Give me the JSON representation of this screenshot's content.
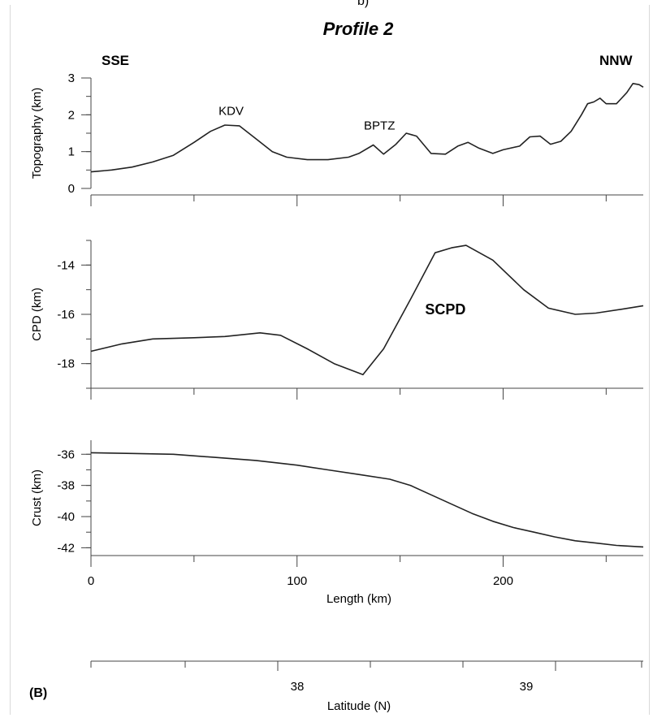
{
  "figure": {
    "title": "Profile 2",
    "panel_label": "(B)",
    "header_fragment": "b)",
    "direction_left": "SSE",
    "direction_right": "NNW"
  },
  "chart_data": [
    {
      "type": "line",
      "name": "topography",
      "ylabel": "Topography (km)",
      "xlim": [
        0,
        268
      ],
      "ylim": [
        0,
        3
      ],
      "yticks": [
        0,
        1,
        2,
        3
      ],
      "annotations": [
        {
          "text": "KDV",
          "x": 68,
          "y": 2.0
        },
        {
          "text": "BPTZ",
          "x": 140,
          "y": 1.6
        }
      ],
      "x": [
        0,
        10,
        20,
        30,
        40,
        50,
        58,
        65,
        72,
        80,
        88,
        95,
        105,
        115,
        125,
        130,
        137,
        142,
        148,
        153,
        158,
        165,
        172,
        178,
        183,
        188,
        195,
        200,
        208,
        213,
        218,
        223,
        228,
        233,
        238,
        241,
        244,
        247,
        250,
        255,
        260,
        263,
        266,
        268
      ],
      "y": [
        0.45,
        0.5,
        0.58,
        0.72,
        0.9,
        1.25,
        1.55,
        1.72,
        1.7,
        1.35,
        1.0,
        0.85,
        0.78,
        0.78,
        0.85,
        0.95,
        1.18,
        0.93,
        1.2,
        1.5,
        1.42,
        0.95,
        0.93,
        1.15,
        1.25,
        1.1,
        0.95,
        1.05,
        1.15,
        1.4,
        1.42,
        1.2,
        1.28,
        1.55,
        2.0,
        2.3,
        2.35,
        2.45,
        2.3,
        2.3,
        2.6,
        2.85,
        2.82,
        2.75
      ]
    },
    {
      "type": "line",
      "name": "scpd",
      "ylabel": "CPD (km)",
      "xlim": [
        0,
        268
      ],
      "ylim": [
        -19,
        -13
      ],
      "yticks": [
        -18,
        -16,
        -14
      ],
      "annotations": [
        {
          "text": "SCPD",
          "x": 172,
          "y": -16.0
        }
      ],
      "x": [
        0,
        15,
        30,
        50,
        65,
        82,
        92,
        105,
        118,
        132,
        142,
        155,
        167,
        175,
        182,
        195,
        210,
        222,
        235,
        245,
        257,
        268
      ],
      "y": [
        -17.5,
        -17.2,
        -17.0,
        -16.95,
        -16.9,
        -16.75,
        -16.85,
        -17.4,
        -18.0,
        -18.45,
        -17.4,
        -15.4,
        -13.5,
        -13.3,
        -13.2,
        -13.8,
        -15.0,
        -15.75,
        -16.0,
        -15.95,
        -15.8,
        -15.65
      ]
    },
    {
      "type": "line",
      "name": "crust",
      "ylabel": "Crust (km)",
      "xlim": [
        0,
        268
      ],
      "ylim": [
        -42.5,
        -35.1
      ],
      "yticks": [
        -42,
        -40,
        -38,
        -36
      ],
      "xlabel": "Length (km)",
      "xticks": [
        0,
        100,
        200
      ],
      "x": [
        0,
        20,
        40,
        60,
        80,
        100,
        115,
        130,
        145,
        155,
        165,
        175,
        185,
        195,
        205,
        215,
        225,
        235,
        245,
        255,
        268
      ],
      "y": [
        -35.9,
        -35.95,
        -36.0,
        -36.2,
        -36.4,
        -36.7,
        -37.0,
        -37.3,
        -37.6,
        -38.0,
        -38.6,
        -39.2,
        -39.8,
        -40.3,
        -40.7,
        -41.0,
        -41.3,
        -41.55,
        -41.7,
        -41.85,
        -41.95
      ]
    }
  ],
  "latitude_axis": {
    "label": "Latitude (N)",
    "ticks": [
      "38",
      "39"
    ]
  }
}
